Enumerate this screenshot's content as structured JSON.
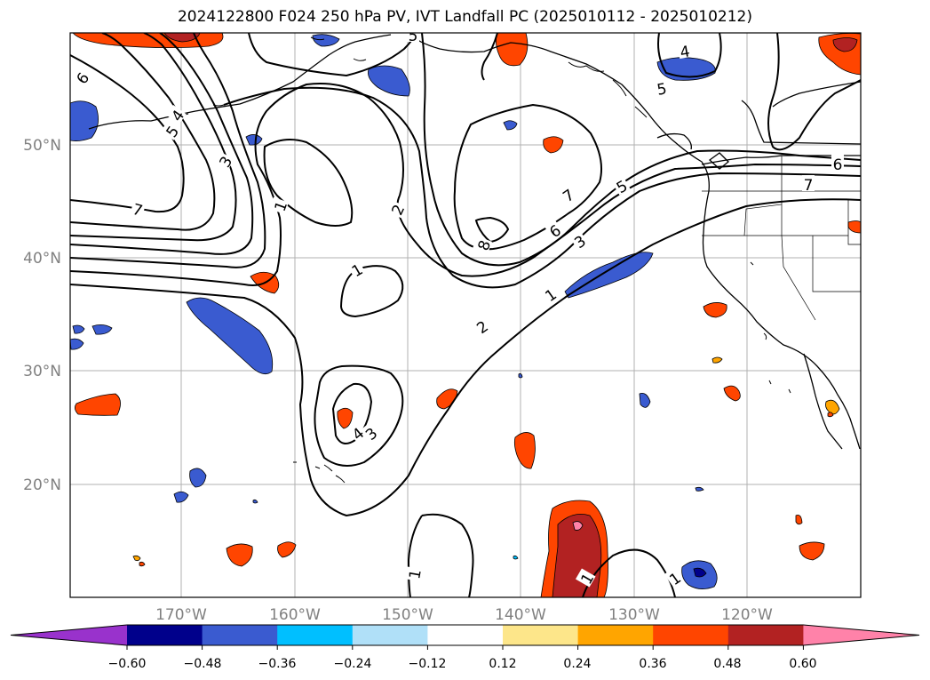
{
  "title": "2024122800 F024 250 hPa PV, IVT Landfall PC (2025010112 - 2025010212)",
  "lat_labels": [
    "50°N",
    "40°N",
    "30°N",
    "20°N"
  ],
  "lon_labels": [
    "170°W",
    "160°W",
    "150°W",
    "140°W",
    "130°W",
    "120°W"
  ],
  "colorbar": {
    "tick_labels": [
      "−0.60",
      "−0.48",
      "−0.36",
      "−0.24",
      "−0.12",
      "0.12",
      "0.24",
      "0.36",
      "0.48",
      "0.60"
    ],
    "colors": [
      "#9932cc",
      "#00008b",
      "#3a5bd0",
      "#00bfff",
      "#b0e0f8",
      "#ffffff",
      "#fde68a",
      "#ffa500",
      "#ff4500",
      "#b22222",
      "#ff82a9"
    ]
  },
  "contour_labels": {
    "c6_nw": "6",
    "c5_nw": "5",
    "c4_nw": "4",
    "c3_a": "3",
    "c7_w": "7",
    "c1_a": "1",
    "c2_a": "2",
    "c1_b": "1",
    "c8": "8",
    "c7_n": "7",
    "c6_n": "6",
    "c5_e": "5",
    "c3_n": "3",
    "c1_e": "1",
    "c2_c": "2",
    "c3_s": "3",
    "c4_s": "4",
    "c5_top": "5",
    "c4_ne": "4",
    "c5_ne": "5",
    "c6_e": "6",
    "c7_e": "7",
    "c1_sw": "1",
    "c1_s": "1",
    "c1_se": "1"
  }
}
